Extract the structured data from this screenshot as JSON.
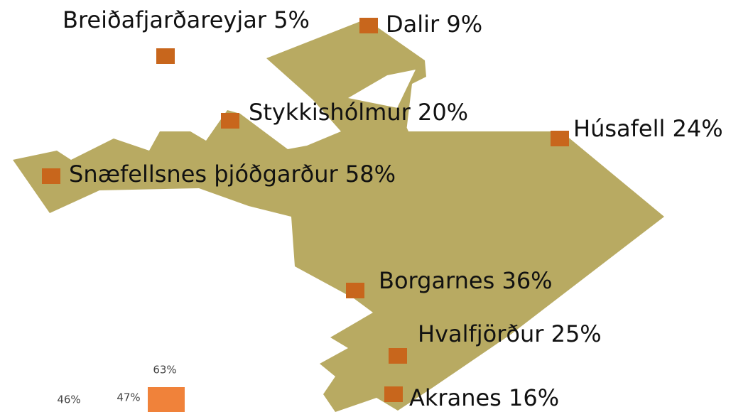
{
  "places": [
    {
      "name": "Breiðafjarðareyjar",
      "share": "5%"
    },
    {
      "name": "Dalir",
      "share": "9%"
    },
    {
      "name": "Stykkishólmur",
      "share": "20%"
    },
    {
      "name": "Húsafell",
      "share": "24%"
    },
    {
      "name": "Snæfellsnes þjóðgarður",
      "share": "58%"
    },
    {
      "name": "Borgarnes",
      "share": "36%"
    },
    {
      "name": "Hvalfjörður",
      "share": "25%"
    },
    {
      "name": "Akranes",
      "share": "16%"
    }
  ],
  "legend": {
    "labels": [
      "63%",
      "46%",
      "47%"
    ]
  }
}
